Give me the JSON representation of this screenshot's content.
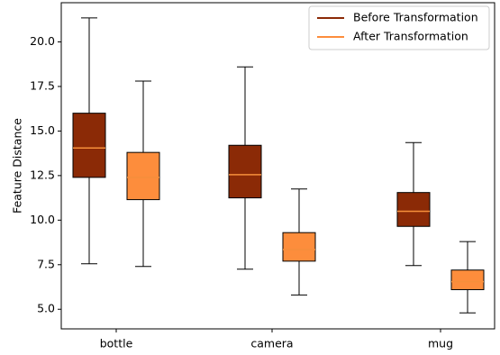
{
  "chart_data": {
    "type": "box",
    "title": "",
    "xlabel": "",
    "ylabel": "Feature Distance",
    "ylim": [
      3.9,
      22.2
    ],
    "yticks": [
      5.0,
      7.5,
      10.0,
      12.5,
      15.0,
      17.5,
      20.0
    ],
    "ytick_labels": [
      "5.0",
      "7.5",
      "10.0",
      "12.5",
      "15.0",
      "17.5",
      "20.0"
    ],
    "categories": [
      "bottle",
      "camera",
      "mug"
    ],
    "grid": false,
    "legend_position": "top-right",
    "series": [
      {
        "name": "Before Transformation",
        "color": "#8B2A06",
        "median_color": "#F58F3B",
        "boxes": [
          {
            "whisker_low": 7.55,
            "q1": 12.4,
            "median": 14.05,
            "q3": 16.0,
            "whisker_high": 21.35
          },
          {
            "whisker_low": 7.25,
            "q1": 11.25,
            "median": 12.55,
            "q3": 14.2,
            "whisker_high": 18.6
          },
          {
            "whisker_low": 7.45,
            "q1": 9.65,
            "median": 10.5,
            "q3": 11.55,
            "whisker_high": 14.35
          }
        ]
      },
      {
        "name": "After Transformation",
        "color": "#FD8D3C",
        "median_color": "#F58F3B",
        "boxes": [
          {
            "whisker_low": 7.4,
            "q1": 11.15,
            "median": 12.4,
            "q3": 13.8,
            "whisker_high": 17.8
          },
          {
            "whisker_low": 5.8,
            "q1": 7.7,
            "median": 8.35,
            "q3": 9.3,
            "whisker_high": 11.75
          },
          {
            "whisker_low": 4.8,
            "q1": 6.1,
            "median": 6.55,
            "q3": 7.2,
            "whisker_high": 8.8
          }
        ]
      }
    ]
  }
}
